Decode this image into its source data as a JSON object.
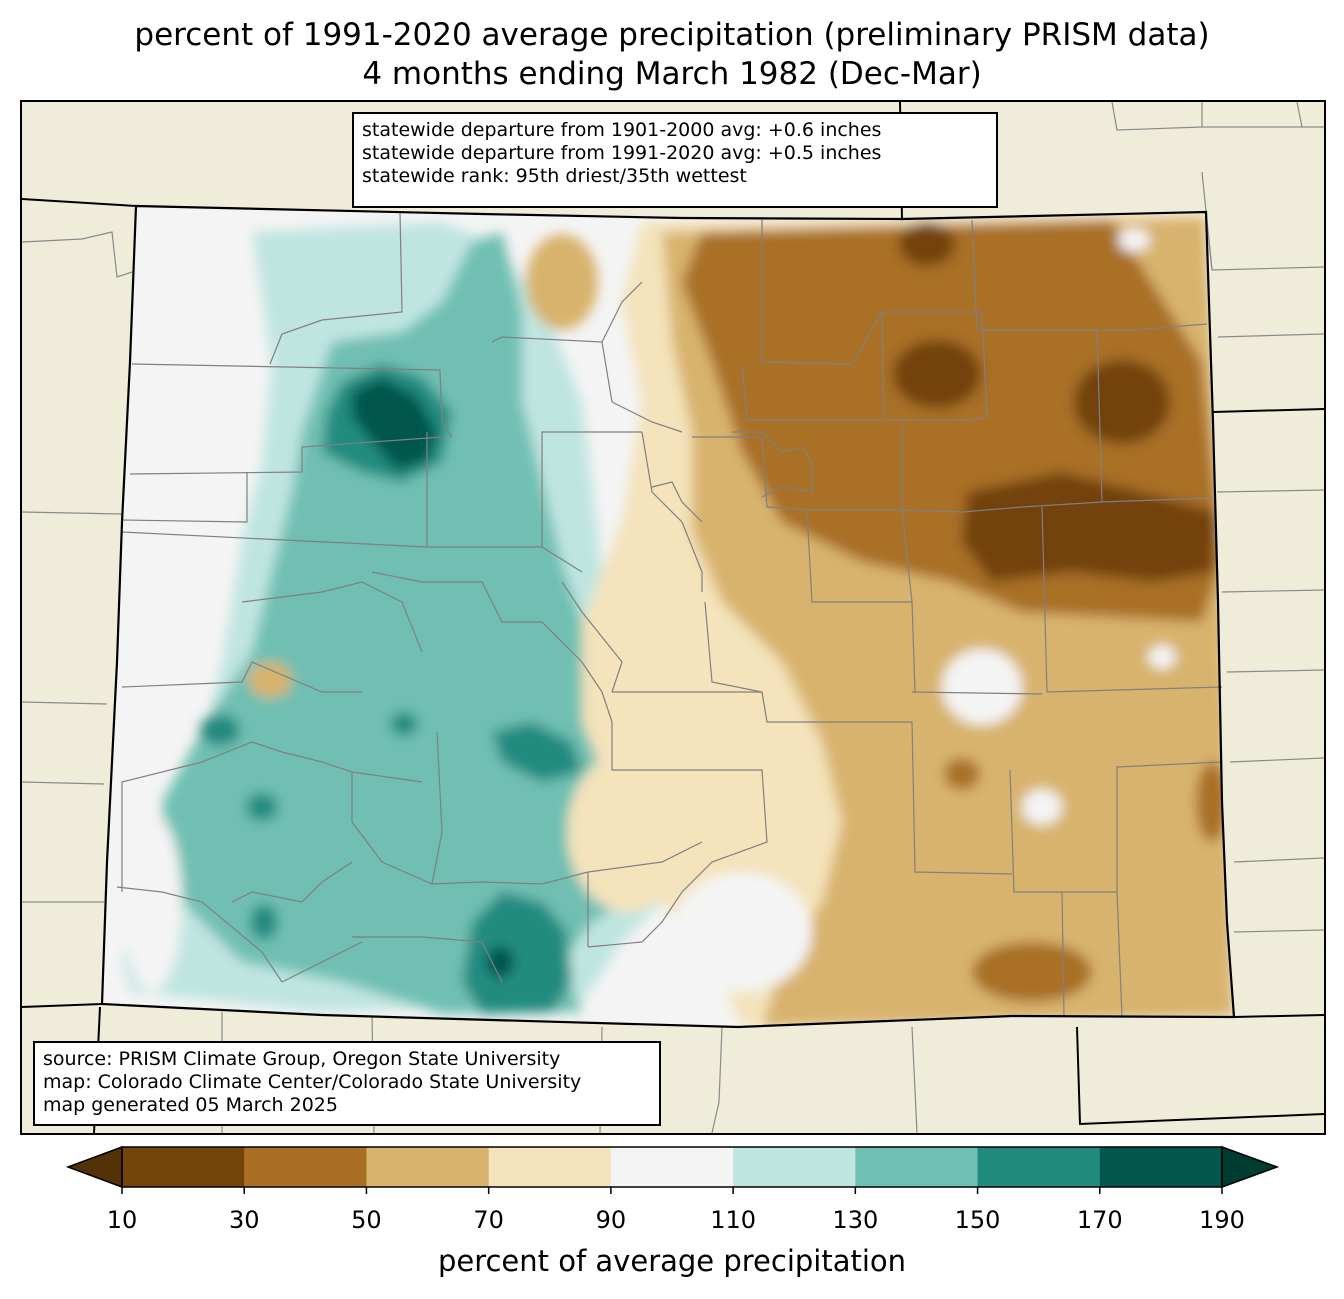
{
  "title": {
    "line1": "percent of 1991-2020 average precipitation (preliminary PRISM data)",
    "line2": "4 months ending March 1982 (Dec-Mar)"
  },
  "stats": {
    "line1": "statewide departure from 1901-2000 avg: +0.6 inches",
    "line2": "statewide departure from 1991-2020 avg: +0.5 inches",
    "line3": "statewide rank: 95th driest/35th wettest"
  },
  "source": {
    "line1": "source: PRISM Climate Group, Oregon State University",
    "line2": "map: Colorado Climate Center/Colorado State University",
    "line3": "map generated 05 March 2025"
  },
  "colorbar": {
    "label": "percent of average precipitation",
    "ticks": [
      "10",
      "30",
      "50",
      "70",
      "90",
      "110",
      "130",
      "150",
      "170",
      "190"
    ],
    "colors": [
      "#734309",
      "#a96f25",
      "#d8b36d",
      "#f4e3bb",
      "#f4f4f4",
      "#bfe5e1",
      "#6fbfb2",
      "#228b80",
      "#01574d"
    ],
    "under_color": "#533207",
    "over_color": "#003c30"
  },
  "map": {
    "background_color": "#efecd9"
  }
}
